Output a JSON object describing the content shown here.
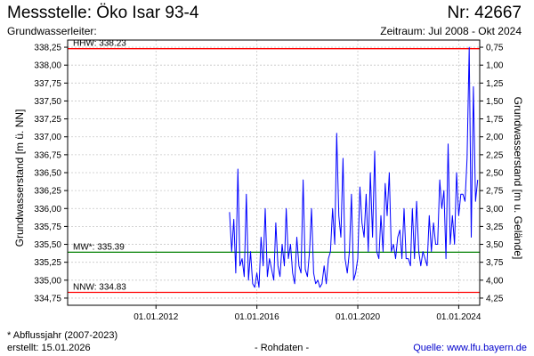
{
  "header": {
    "title": "Messstelle: Öko Isar 93-4",
    "number": "Nr: 42667",
    "aquifer_label": "Grundwasserleiter:",
    "period": "Zeitraum: Jul 2008 - Okt 2024"
  },
  "footer": {
    "footnote": "* Abflussjahr (2007-2023)",
    "created": "erstellt:  15.01.2026",
    "raw_data": "- Rohdaten -",
    "source": "Quelle: www.lfu.bayern.de"
  },
  "colors": {
    "series": "#0000ff",
    "hhw": "#ff0000",
    "nnw": "#ff0000",
    "mw": "#008000",
    "grid": "#c8c8c8"
  },
  "chart_data": {
    "type": "line",
    "title": "",
    "ylabel": "Grundwasserstand [m ü. NN]",
    "y2label": "Grundwasserstand [m u. Gelände]",
    "x_range": [
      "2008-07-01",
      "2024-10-31"
    ],
    "ylim": [
      334.65,
      338.35
    ],
    "y2lim": [
      4.35,
      0.65
    ],
    "x_ticks": [
      "01.01.2012",
      "01.01.2016",
      "01.01.2020",
      "01.01.2024"
    ],
    "y_ticks": [
      "334,75",
      "335,00",
      "335,25",
      "335,50",
      "335,75",
      "336,00",
      "336,25",
      "336,50",
      "336,75",
      "337,00",
      "337,25",
      "337,50",
      "337,75",
      "338,00",
      "338,25"
    ],
    "y_tick_values": [
      334.75,
      335.0,
      335.25,
      335.5,
      335.75,
      336.0,
      336.25,
      336.5,
      336.75,
      337.0,
      337.25,
      337.5,
      337.75,
      338.0,
      338.25
    ],
    "y2_ticks": [
      "4,25",
      "4,00",
      "3,75",
      "3,50",
      "3,25",
      "3,00",
      "2,75",
      "2,50",
      "2,25",
      "2,00",
      "1,75",
      "1,50",
      "1,25",
      "1,00",
      "0,75"
    ],
    "grid": true,
    "reference_lines": [
      {
        "label": "HHW: 338.23",
        "value": 338.23
      },
      {
        "label": "MW*: 335.39",
        "value": 335.39
      },
      {
        "label": "NNW: 334.83",
        "value": 334.83
      }
    ],
    "series": [
      {
        "x": [
          "2014-12-01",
          "2015-01-01",
          "2015-02-01",
          "2015-03-01",
          "2015-04-01",
          "2015-05-01",
          "2015-06-01",
          "2015-07-01",
          "2015-08-01",
          "2015-09-01",
          "2015-10-01",
          "2015-11-01",
          "2015-12-01",
          "2016-01-01",
          "2016-02-01",
          "2016-03-01",
          "2016-04-01",
          "2016-05-01",
          "2016-06-01",
          "2016-07-01",
          "2016-08-01",
          "2016-09-01",
          "2016-10-01",
          "2016-11-01",
          "2016-12-01",
          "2017-01-01",
          "2017-02-01",
          "2017-03-01",
          "2017-04-01",
          "2017-05-01",
          "2017-06-01",
          "2017-07-01",
          "2017-08-01",
          "2017-09-01",
          "2017-10-01",
          "2017-11-01",
          "2017-12-01",
          "2018-01-01",
          "2018-02-01",
          "2018-03-01",
          "2018-04-01",
          "2018-05-01",
          "2018-06-01",
          "2018-07-01",
          "2018-08-01",
          "2018-09-01",
          "2018-10-01",
          "2018-11-01",
          "2018-12-01",
          "2019-01-01",
          "2019-02-01",
          "2019-03-01",
          "2019-04-01",
          "2019-05-01",
          "2019-06-01",
          "2019-07-01",
          "2019-08-01",
          "2019-09-01",
          "2019-10-01",
          "2019-11-01",
          "2019-12-01",
          "2020-01-01",
          "2020-02-01",
          "2020-03-01",
          "2020-04-01",
          "2020-05-01",
          "2020-06-01",
          "2020-07-01",
          "2020-08-01",
          "2020-09-01",
          "2020-10-01",
          "2020-11-01",
          "2020-12-01",
          "2021-01-01",
          "2021-02-01",
          "2021-03-01",
          "2021-04-01",
          "2021-05-01",
          "2021-06-01",
          "2021-07-01",
          "2021-08-01",
          "2021-09-01",
          "2021-10-01",
          "2021-11-01",
          "2021-12-01",
          "2022-01-01",
          "2022-02-01",
          "2022-03-01",
          "2022-04-01",
          "2022-05-01",
          "2022-06-01",
          "2022-07-01",
          "2022-08-01",
          "2022-09-01",
          "2022-10-01",
          "2022-11-01",
          "2022-12-01",
          "2023-01-01",
          "2023-02-01",
          "2023-03-01",
          "2023-04-01",
          "2023-05-01",
          "2023-06-01",
          "2023-07-01",
          "2023-08-01",
          "2023-09-01",
          "2023-10-01",
          "2023-11-01",
          "2023-12-01",
          "2024-01-01",
          "2024-02-01",
          "2024-03-01",
          "2024-04-01",
          "2024-05-01",
          "2024-06-01",
          "2024-07-01",
          "2024-08-01",
          "2024-09-01",
          "2024-10-01"
        ],
        "y": [
          335.95,
          335.4,
          335.85,
          335.1,
          336.55,
          335.2,
          335.3,
          335.05,
          336.2,
          335.0,
          335.4,
          334.95,
          334.9,
          335.1,
          334.9,
          335.6,
          335.2,
          336.0,
          335.05,
          335.3,
          335.15,
          335.0,
          335.8,
          335.2,
          335.05,
          335.5,
          335.2,
          336.0,
          335.3,
          335.5,
          335.1,
          334.95,
          335.6,
          335.2,
          335.1,
          336.4,
          335.15,
          335.05,
          335.4,
          336.0,
          335.1,
          334.95,
          335.0,
          334.9,
          334.95,
          335.2,
          334.95,
          335.3,
          335.4,
          336.0,
          335.5,
          337.05,
          335.9,
          335.6,
          336.7,
          335.3,
          335.1,
          335.4,
          336.2,
          335.0,
          335.1,
          335.3,
          336.3,
          335.8,
          335.6,
          336.2,
          335.4,
          336.5,
          335.6,
          336.8,
          335.4,
          335.3,
          335.9,
          335.4,
          336.35,
          335.9,
          336.5,
          335.4,
          335.5,
          335.3,
          335.6,
          335.7,
          335.3,
          336.0,
          335.3,
          335.3,
          335.2,
          336.0,
          335.3,
          336.1,
          335.4,
          335.2,
          335.4,
          335.3,
          335.2,
          335.9,
          335.4,
          335.8,
          335.5,
          335.5,
          336.4,
          336.0,
          336.25,
          335.3,
          336.9,
          335.5,
          335.9,
          335.5,
          336.5,
          335.9,
          336.2,
          336.2,
          336.1,
          336.7,
          338.25,
          335.6,
          337.7,
          336.1,
          336.4
        ]
      }
    ]
  }
}
